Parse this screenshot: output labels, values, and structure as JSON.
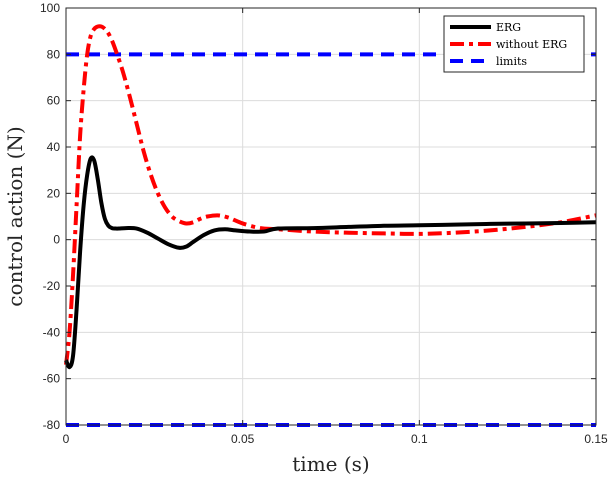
{
  "chart_data": {
    "type": "line",
    "xlabel": "time (s)",
    "ylabel": "control action (N)",
    "xlim": [
      0,
      0.15
    ],
    "ylim": [
      -80,
      100
    ],
    "xticks": [
      0,
      0.05,
      0.1,
      0.15
    ],
    "xtick_labels": [
      "0",
      "0.05",
      "0.1",
      "0.15"
    ],
    "yticks": [
      -80,
      -60,
      -40,
      -20,
      0,
      20,
      40,
      60,
      80,
      100
    ],
    "ytick_labels": [
      "-80",
      "-60",
      "-40",
      "-20",
      "0",
      "20",
      "40",
      "60",
      "80",
      "100"
    ],
    "grid": true,
    "legend_position": "top-right",
    "series": [
      {
        "name": "ERG",
        "color": "#000000",
        "style": "solid",
        "x": [
          0,
          0.001,
          0.002,
          0.003,
          0.004,
          0.005,
          0.006,
          0.007,
          0.008,
          0.009,
          0.01,
          0.011,
          0.012,
          0.013,
          0.014,
          0.015,
          0.017,
          0.02,
          0.023,
          0.026,
          0.029,
          0.032,
          0.034,
          0.036,
          0.039,
          0.042,
          0.045,
          0.048,
          0.052,
          0.056,
          0.06,
          0.07,
          0.08,
          0.09,
          0.1,
          0.11,
          0.12,
          0.13,
          0.14,
          0.15
        ],
        "values": [
          -52,
          -55,
          -50,
          -30,
          -5,
          15,
          28,
          35,
          34,
          26,
          16,
          9,
          6,
          5,
          4.8,
          4.8,
          5,
          4.8,
          3,
          0.5,
          -2,
          -3.5,
          -3,
          -1,
          2,
          4,
          4.5,
          4,
          3.5,
          3.5,
          4.8,
          5,
          5.5,
          6,
          6.2,
          6.5,
          6.8,
          7,
          7.2,
          7.5
        ]
      },
      {
        "name": "without ERG",
        "color": "#ff0000",
        "style": "dashdot",
        "x": [
          0,
          0.001,
          0.002,
          0.003,
          0.004,
          0.005,
          0.006,
          0.007,
          0.008,
          0.009,
          0.01,
          0.011,
          0.012,
          0.013,
          0.014,
          0.016,
          0.018,
          0.02,
          0.022,
          0.024,
          0.026,
          0.028,
          0.03,
          0.032,
          0.034,
          0.036,
          0.038,
          0.04,
          0.043,
          0.046,
          0.05,
          0.055,
          0.06,
          0.07,
          0.08,
          0.09,
          0.1,
          0.11,
          0.12,
          0.13,
          0.14,
          0.15
        ],
        "values": [
          -54,
          -40,
          -15,
          15,
          45,
          65,
          80,
          88,
          91,
          92,
          92,
          91,
          89,
          86,
          82,
          73,
          62,
          50,
          38,
          28,
          20,
          14,
          10,
          8,
          7,
          7.5,
          9,
          10,
          10.5,
          9.5,
          7,
          5,
          4.5,
          3.5,
          3,
          2.7,
          2.5,
          3,
          4,
          5.5,
          7.5,
          10.5
        ]
      },
      {
        "name": "limits",
        "color": "#0000ff",
        "style": "dashed",
        "x": [
          0,
          0.15
        ],
        "values": [
          80,
          80
        ]
      },
      {
        "name": "",
        "color": "#0000ff",
        "style": "dashed",
        "x": [
          0,
          0.15
        ],
        "values": [
          -80,
          -80
        ]
      }
    ],
    "legend": [
      "ERG",
      "without ERG",
      "limits"
    ]
  }
}
